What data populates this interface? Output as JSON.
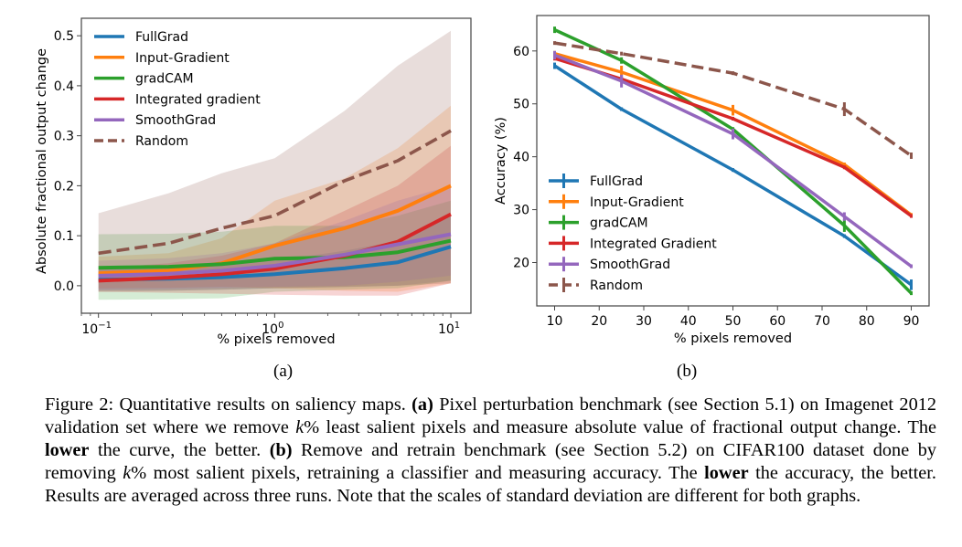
{
  "chart_data": [
    {
      "id": "a",
      "type": "line",
      "xscale": "log",
      "xlabel": "% pixels removed",
      "ylabel": "Absolute fractional output change",
      "xlim": [
        0.08,
        13
      ],
      "ylim": [
        -0.055,
        0.535
      ],
      "xticks": [
        0.1,
        1,
        10
      ],
      "xtick_labels": [
        {
          "base": "10",
          "exp": "−1"
        },
        {
          "base": "10",
          "exp": "0"
        },
        {
          "base": "10",
          "exp": "1"
        }
      ],
      "yticks": [
        0.0,
        0.1,
        0.2,
        0.3,
        0.4,
        0.5
      ],
      "ytick_labels": [
        "0.0",
        "0.1",
        "0.2",
        "0.3",
        "0.4",
        "0.5"
      ],
      "grid": false,
      "legend_position": "top-left",
      "x": [
        0.1,
        0.25,
        0.5,
        1,
        2.5,
        5,
        10
      ],
      "series": [
        {
          "name": "FullGrad",
          "color": "#1f77b4",
          "dashed": false,
          "values": [
            0.012,
            0.014,
            0.017,
            0.023,
            0.035,
            0.047,
            0.078
          ],
          "lower": [
            -0.01,
            -0.01,
            -0.008,
            -0.005,
            -0.003,
            0.0,
            0.01
          ],
          "upper": [
            0.035,
            0.038,
            0.042,
            0.05,
            0.07,
            0.09,
            0.14
          ]
        },
        {
          "name": "Input-Gradient",
          "color": "#ff7f0e",
          "dashed": false,
          "values": [
            0.025,
            0.03,
            0.045,
            0.08,
            0.115,
            0.15,
            0.2
          ],
          "lower": [
            -0.005,
            -0.004,
            -0.002,
            -0.005,
            -0.01,
            -0.012,
            0.005
          ],
          "upper": [
            0.058,
            0.065,
            0.095,
            0.17,
            0.215,
            0.275,
            0.36
          ]
        },
        {
          "name": "gradCAM",
          "color": "#2ca02c",
          "dashed": false,
          "values": [
            0.036,
            0.038,
            0.043,
            0.054,
            0.057,
            0.067,
            0.09
          ],
          "lower": [
            -0.028,
            -0.027,
            -0.025,
            -0.012,
            -0.008,
            -0.005,
            0.01
          ],
          "upper": [
            0.103,
            0.104,
            0.108,
            0.12,
            0.12,
            0.14,
            0.17
          ]
        },
        {
          "name": "Integrated gradient",
          "color": "#d62728",
          "dashed": false,
          "values": [
            0.01,
            0.016,
            0.023,
            0.034,
            0.06,
            0.088,
            0.143
          ],
          "lower": [
            -0.012,
            -0.014,
            -0.016,
            -0.018,
            -0.02,
            -0.02,
            0.005
          ],
          "upper": [
            0.035,
            0.045,
            0.06,
            0.085,
            0.15,
            0.2,
            0.28
          ]
        },
        {
          "name": "SmoothGrad",
          "color": "#9467bd",
          "dashed": false,
          "values": [
            0.02,
            0.024,
            0.03,
            0.04,
            0.062,
            0.083,
            0.103
          ],
          "lower": [
            -0.008,
            -0.006,
            -0.004,
            -0.002,
            0.0,
            0.008,
            0.02
          ],
          "upper": [
            0.05,
            0.055,
            0.065,
            0.085,
            0.13,
            0.17,
            0.2
          ]
        },
        {
          "name": "Random",
          "color": "#8c564b",
          "dashed": true,
          "values": [
            0.065,
            0.085,
            0.115,
            0.14,
            0.21,
            0.25,
            0.31
          ],
          "lower": [
            -0.012,
            -0.01,
            -0.008,
            -0.005,
            -0.002,
            0.0,
            0.005
          ],
          "upper": [
            0.145,
            0.185,
            0.225,
            0.255,
            0.35,
            0.44,
            0.51
          ]
        }
      ],
      "sublabel": "(a)"
    },
    {
      "id": "b",
      "type": "line",
      "xlabel": "% pixels removed",
      "ylabel": "Accuracy (%)",
      "xlim": [
        6,
        94
      ],
      "ylim": [
        11.8,
        66.7
      ],
      "xticks": [
        10,
        20,
        30,
        40,
        50,
        60,
        70,
        80,
        90
      ],
      "xtick_labels": [
        "10",
        "20",
        "30",
        "40",
        "50",
        "60",
        "70",
        "80",
        "90"
      ],
      "yticks": [
        20,
        30,
        40,
        50,
        60
      ],
      "ytick_labels": [
        "20",
        "30",
        "40",
        "50",
        "60"
      ],
      "grid": false,
      "legend_position": "bottom-left",
      "x": [
        10,
        25,
        50,
        75,
        90
      ],
      "series": [
        {
          "name": "FullGrad",
          "color": "#1f77b4",
          "dashed": false,
          "values": [
            57.2,
            49.0,
            37.5,
            25.0,
            15.8
          ],
          "err": [
            0.6,
            0.2,
            0.2,
            0.3,
            1.0
          ]
        },
        {
          "name": "Input-Gradient",
          "color": "#ff7f0e",
          "dashed": false,
          "values": [
            59.5,
            56.0,
            48.8,
            38.5,
            29.0
          ],
          "err": [
            0.5,
            1.2,
            1.0,
            0.4,
            0.3
          ]
        },
        {
          "name": "gradCAM",
          "color": "#2ca02c",
          "dashed": false,
          "values": [
            64.0,
            58.2,
            45.2,
            27.0,
            14.2
          ],
          "err": [
            0.6,
            0.6,
            0.4,
            1.2,
            0.3
          ]
        },
        {
          "name": "Integrated Gradient",
          "color": "#d62728",
          "dashed": false,
          "values": [
            58.6,
            54.7,
            47.2,
            38.0,
            28.8
          ],
          "err": [
            0.4,
            0.4,
            0.3,
            0.3,
            0.3
          ]
        },
        {
          "name": "SmoothGrad",
          "color": "#9467bd",
          "dashed": false,
          "values": [
            59.2,
            54.3,
            44.3,
            28.7,
            19.3
          ],
          "err": [
            0.8,
            1.2,
            1.0,
            0.8,
            0.3
          ]
        },
        {
          "name": "Random",
          "color": "#8c564b",
          "dashed": true,
          "values": [
            61.5,
            59.5,
            55.8,
            49.0,
            40.2
          ],
          "err": [
            0.3,
            0.3,
            0.3,
            1.3,
            0.6
          ]
        }
      ],
      "sublabel": "(b)"
    }
  ],
  "caption": {
    "prefix": "Figure 2: Quantitative results on saliency maps. ",
    "a_tag": "(a)",
    "part1": " Pixel perturbation benchmark (see Section 5.1) on Imagenet 2012 validation set where we remove ",
    "k1": "k",
    "part2": "% least salient pixels and measure absolute value of fractional output change. The ",
    "bold1": "lower",
    "part3": " the curve, the better. ",
    "b_tag": "(b)",
    "part4": " Remove and retrain benchmark (see Section 5.2) on CIFAR100 dataset done by removing ",
    "k2": "k",
    "part5": "% most salient pixels, retraining a classifier and measuring accuracy. The ",
    "bold2": "lower",
    "part6": " the accuracy, the better. Results are averaged across three runs. Note that the scales of standard deviation are different for both graphs."
  }
}
